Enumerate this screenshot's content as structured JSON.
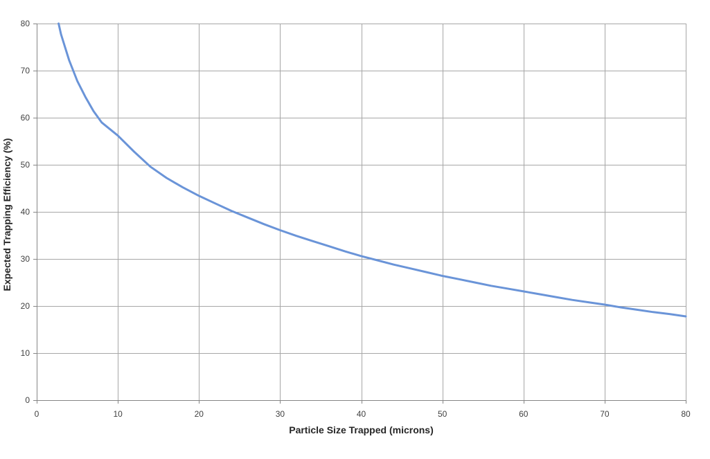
{
  "chart_data": {
    "type": "line",
    "title": "",
    "xlabel": "Particle Size Trapped (microns)",
    "ylabel": "Expected Trapping Efficiency (%)",
    "xlim": [
      0,
      80
    ],
    "ylim": [
      0,
      80
    ],
    "xticks": [
      0,
      10,
      20,
      30,
      40,
      50,
      60,
      70,
      80
    ],
    "yticks": [
      0,
      10,
      20,
      30,
      40,
      50,
      60,
      70,
      80
    ],
    "xtick_labels": [
      "0",
      "10",
      "20",
      "30",
      "40",
      "50",
      "60",
      "70",
      "80"
    ],
    "ytick_labels": [
      "0",
      "10",
      "20",
      "30",
      "40",
      "50",
      "60",
      "70",
      "80"
    ],
    "grid": true,
    "legend": "none",
    "series": [
      {
        "color": "#6a94d8",
        "x": [
          2.7,
          3,
          4,
          5,
          6,
          7,
          8,
          9,
          10,
          12,
          14,
          16,
          18,
          20,
          22,
          24,
          26,
          28,
          30,
          32,
          34,
          36,
          38,
          40,
          42,
          44,
          46,
          48,
          50,
          52,
          54,
          56,
          58,
          60,
          62,
          64,
          66,
          68,
          70,
          72,
          74,
          76,
          78,
          80
        ],
        "y": [
          80.0,
          77.7,
          72.2,
          67.8,
          64.4,
          61.4,
          59.0,
          57.6,
          56.2,
          52.8,
          49.6,
          47.2,
          45.2,
          43.4,
          41.8,
          40.2,
          38.8,
          37.4,
          36.1,
          34.9,
          33.8,
          32.7,
          31.6,
          30.6,
          29.7,
          28.8,
          28.0,
          27.2,
          26.4,
          25.7,
          25.0,
          24.3,
          23.7,
          23.1,
          22.5,
          21.9,
          21.3,
          20.8,
          20.3,
          19.7,
          19.2,
          18.7,
          18.3,
          17.8
        ]
      }
    ]
  }
}
